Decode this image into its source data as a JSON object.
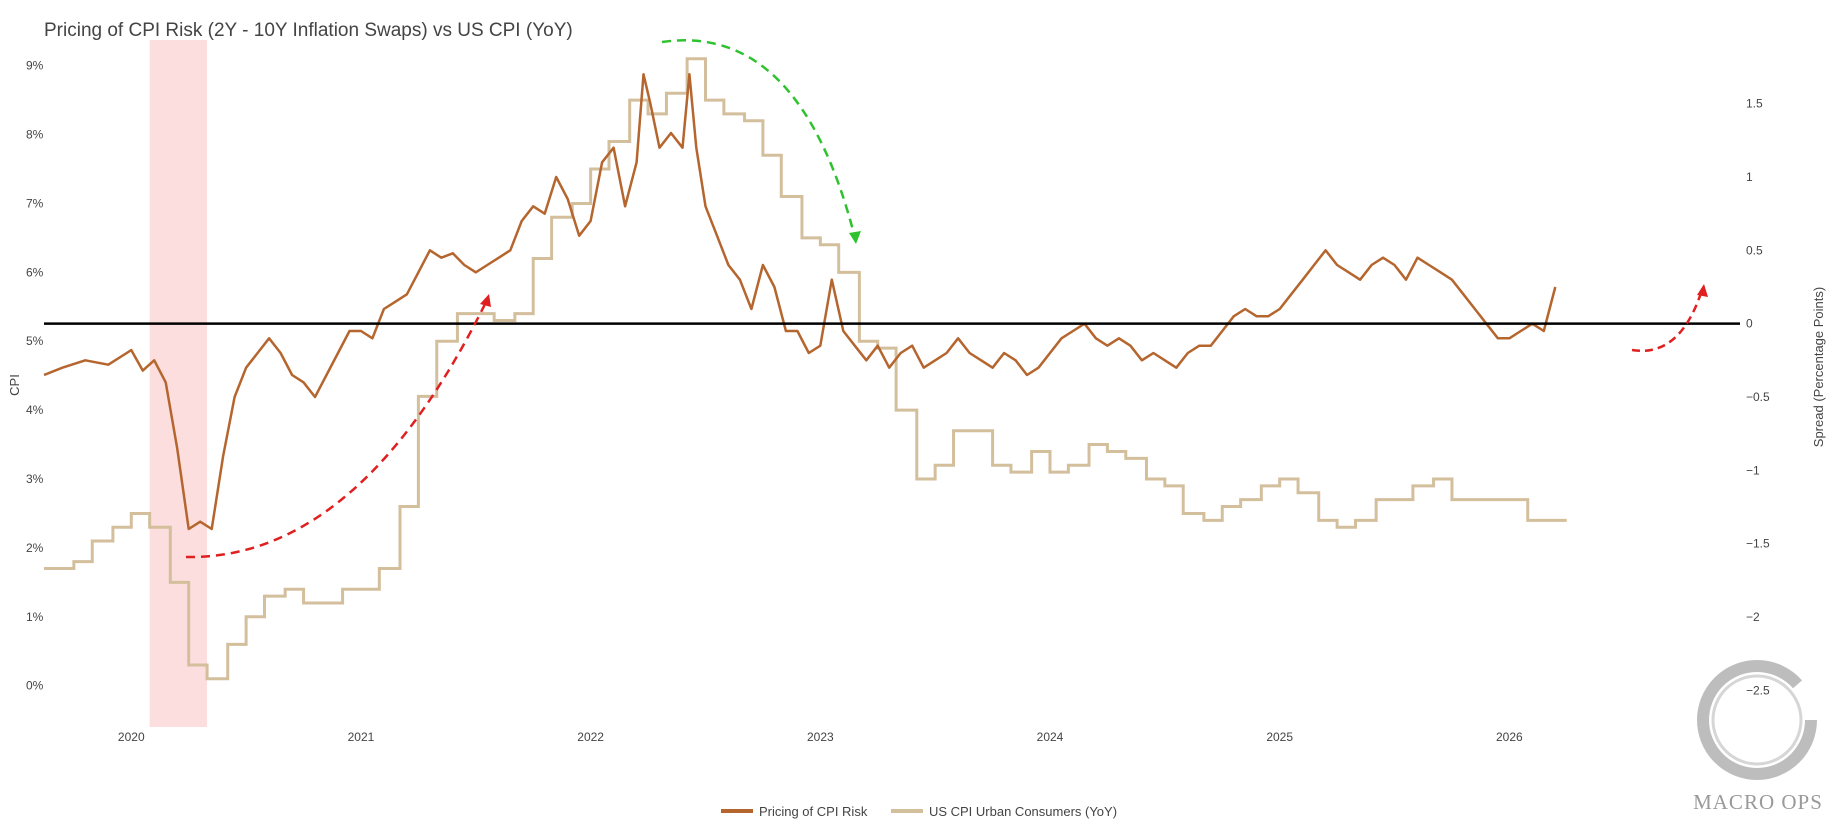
{
  "chart_data": {
    "type": "line",
    "title": "Pricing of CPI Risk (2Y - 10Y Inflation Swaps) vs US CPI (YoY)",
    "left_axis": {
      "label": "CPI",
      "range": [
        -0.6,
        9.3
      ],
      "ticks": [
        "9%",
        "8%",
        "7%",
        "6%",
        "5%",
        "4%",
        "3%",
        "2%",
        "1%",
        "0%"
      ],
      "tick_values": [
        9,
        8,
        7,
        6,
        5,
        4,
        3,
        2,
        1,
        0
      ]
    },
    "right_axis": {
      "label": "Spread (Percentage Points)",
      "range": [
        -2.75,
        1.9
      ],
      "ticks": [
        "1.5",
        "1",
        "0.5",
        "0",
        "−0.5",
        "−1",
        "−1.5",
        "−2",
        "−2.5"
      ],
      "tick_values": [
        1.5,
        1,
        0.5,
        0,
        -0.5,
        -1,
        -1.5,
        -2,
        -2.5
      ]
    },
    "x_axis": {
      "ticks": [
        "2020",
        "2021",
        "2022",
        "2023",
        "2024",
        "2025",
        "2026"
      ],
      "tick_values": [
        2020,
        2021,
        2022,
        2023,
        2024,
        2025,
        2026
      ],
      "range": [
        2019.62,
        2026.83
      ]
    },
    "zero_line": 0,
    "recession_shading": [
      2020.08,
      2020.33
    ],
    "series": [
      {
        "name": "Pricing of CPI Risk",
        "axis": "right",
        "color": "#b5652e",
        "x": [
          2019.62,
          2019.7,
          2019.8,
          2019.9,
          2020.0,
          2020.05,
          2020.1,
          2020.15,
          2020.2,
          2020.25,
          2020.3,
          2020.35,
          2020.4,
          2020.45,
          2020.5,
          2020.55,
          2020.6,
          2020.65,
          2020.7,
          2020.75,
          2020.8,
          2020.85,
          2020.9,
          2020.95,
          2021.0,
          2021.05,
          2021.1,
          2021.15,
          2021.2,
          2021.25,
          2021.3,
          2021.35,
          2021.4,
          2021.45,
          2021.5,
          2021.55,
          2021.6,
          2021.65,
          2021.7,
          2021.75,
          2021.8,
          2021.85,
          2021.9,
          2021.95,
          2022.0,
          2022.05,
          2022.1,
          2022.15,
          2022.2,
          2022.23,
          2022.26,
          2022.3,
          2022.35,
          2022.4,
          2022.43,
          2022.46,
          2022.5,
          2022.55,
          2022.6,
          2022.65,
          2022.7,
          2022.75,
          2022.8,
          2022.85,
          2022.9,
          2022.95,
          2023.0,
          2023.05,
          2023.1,
          2023.15,
          2023.2,
          2023.25,
          2023.3,
          2023.35,
          2023.4,
          2023.45,
          2023.5,
          2023.55,
          2023.6,
          2023.65,
          2023.7,
          2023.75,
          2023.8,
          2023.85,
          2023.9,
          2023.95,
          2024.0,
          2024.05,
          2024.1,
          2024.15,
          2024.2,
          2024.25,
          2024.3,
          2024.35,
          2024.4,
          2024.45,
          2024.5,
          2024.55,
          2024.6,
          2024.65,
          2024.7,
          2024.75,
          2024.8,
          2024.85,
          2024.9,
          2024.95,
          2025.0,
          2025.05,
          2025.1,
          2025.15,
          2025.2,
          2025.25,
          2025.3,
          2025.35,
          2025.4,
          2025.45,
          2025.5,
          2025.55,
          2025.6,
          2025.65,
          2025.7,
          2025.75,
          2025.8,
          2025.85,
          2025.9,
          2025.95,
          2026.0,
          2026.05,
          2026.1,
          2026.15,
          2026.2
        ],
        "y": [
          -0.35,
          -0.3,
          -0.25,
          -0.28,
          -0.18,
          -0.32,
          -0.25,
          -0.4,
          -0.85,
          -1.4,
          -1.35,
          -1.4,
          -0.9,
          -0.5,
          -0.3,
          -0.2,
          -0.1,
          -0.2,
          -0.35,
          -0.4,
          -0.5,
          -0.35,
          -0.2,
          -0.05,
          -0.05,
          -0.1,
          0.1,
          0.15,
          0.2,
          0.35,
          0.5,
          0.45,
          0.48,
          0.4,
          0.35,
          0.4,
          0.45,
          0.5,
          0.7,
          0.8,
          0.75,
          1.0,
          0.85,
          0.6,
          0.7,
          1.1,
          1.2,
          0.8,
          1.1,
          1.7,
          1.5,
          1.2,
          1.3,
          1.2,
          1.7,
          1.2,
          0.8,
          0.6,
          0.4,
          0.3,
          0.1,
          0.4,
          0.25,
          -0.05,
          -0.05,
          -0.2,
          -0.15,
          0.3,
          -0.05,
          -0.15,
          -0.25,
          -0.15,
          -0.3,
          -0.2,
          -0.15,
          -0.3,
          -0.25,
          -0.2,
          -0.1,
          -0.2,
          -0.25,
          -0.3,
          -0.2,
          -0.25,
          -0.35,
          -0.3,
          -0.2,
          -0.1,
          -0.05,
          0.0,
          -0.1,
          -0.15,
          -0.1,
          -0.15,
          -0.25,
          -0.2,
          -0.25,
          -0.3,
          -0.2,
          -0.15,
          -0.15,
          -0.05,
          0.05,
          0.1,
          0.05,
          0.05,
          0.1,
          0.2,
          0.3,
          0.4,
          0.5,
          0.4,
          0.35,
          0.3,
          0.4,
          0.45,
          0.4,
          0.3,
          0.45,
          0.4,
          0.35,
          0.3,
          0.2,
          0.1,
          0.0,
          -0.1,
          -0.1,
          -0.05,
          0.0,
          -0.05,
          0.25
        ]
      },
      {
        "name": "US CPI Urban Consumers (YoY)",
        "axis": "left",
        "color": "#d4bf9d",
        "x": [
          2019.62,
          2019.75,
          2019.83,
          2019.92,
          2020.0,
          2020.08,
          2020.17,
          2020.25,
          2020.33,
          2020.42,
          2020.5,
          2020.58,
          2020.67,
          2020.75,
          2020.83,
          2020.92,
          2021.0,
          2021.08,
          2021.17,
          2021.25,
          2021.33,
          2021.42,
          2021.5,
          2021.58,
          2021.67,
          2021.75,
          2021.83,
          2021.92,
          2022.0,
          2022.08,
          2022.17,
          2022.25,
          2022.33,
          2022.42,
          2022.5,
          2022.58,
          2022.67,
          2022.75,
          2022.83,
          2022.92,
          2023.0,
          2023.08,
          2023.17,
          2023.25,
          2023.33,
          2023.42,
          2023.5,
          2023.58,
          2023.67,
          2023.75,
          2023.83,
          2023.92,
          2024.0,
          2024.08,
          2024.17,
          2024.25,
          2024.33,
          2024.42,
          2024.5,
          2024.58,
          2024.67,
          2024.75,
          2024.83,
          2024.92,
          2025.0,
          2025.08,
          2025.17,
          2025.25,
          2025.33,
          2025.42,
          2025.5,
          2025.58,
          2025.67,
          2025.75,
          2025.83,
          2025.92,
          2026.0,
          2026.08,
          2026.17
        ],
        "y": [
          1.7,
          1.8,
          2.1,
          2.3,
          2.5,
          2.3,
          1.5,
          0.3,
          0.1,
          0.6,
          1.0,
          1.3,
          1.4,
          1.2,
          1.2,
          1.4,
          1.4,
          1.7,
          2.6,
          4.2,
          5.0,
          5.4,
          5.4,
          5.3,
          5.4,
          6.2,
          6.8,
          7.0,
          7.5,
          7.9,
          8.5,
          8.3,
          8.6,
          9.1,
          8.5,
          8.3,
          8.2,
          7.7,
          7.1,
          6.5,
          6.4,
          6.0,
          5.0,
          4.9,
          4.0,
          3.0,
          3.2,
          3.7,
          3.7,
          3.2,
          3.1,
          3.4,
          3.1,
          3.2,
          3.5,
          3.4,
          3.3,
          3.0,
          2.9,
          2.5,
          2.4,
          2.6,
          2.7,
          2.9,
          3.0,
          2.8,
          2.4,
          2.3,
          2.4,
          2.7,
          2.7,
          2.9,
          3.0,
          2.7,
          2.7,
          2.7,
          2.7,
          2.4,
          2.4
        ]
      }
    ]
  },
  "legend": {
    "items": [
      {
        "label": "Pricing of CPI Risk",
        "color": "#b5652e"
      },
      {
        "label": "US CPI Urban Consumers (YoY)",
        "color": "#d4bf9d"
      }
    ]
  },
  "brand": {
    "name": "MACRO OPS"
  }
}
